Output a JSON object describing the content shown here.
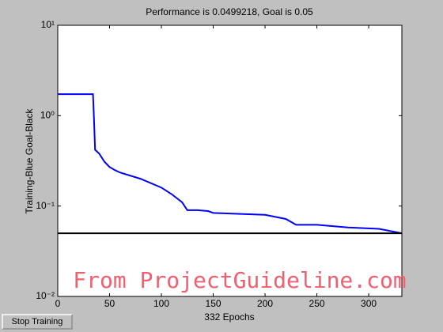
{
  "chart_data": {
    "type": "line",
    "title": "Performance is 0.0499218, Goal is 0.05",
    "x_label": "332 Epochs",
    "y_label": "Training-Blue  Goal-Black",
    "log_y": true,
    "x": [
      0,
      34,
      35,
      36,
      40,
      45,
      50,
      55,
      60,
      80,
      100,
      110,
      120,
      125,
      135,
      145,
      150,
      200,
      220,
      230,
      250,
      280,
      310,
      332
    ],
    "series": [
      {
        "color": "#0000ff",
        "values": [
          1.73,
          1.73,
          0.9,
          0.42,
          0.38,
          0.31,
          0.27,
          0.25,
          0.235,
          0.2,
          0.16,
          0.135,
          0.11,
          0.09,
          0.09,
          0.088,
          0.084,
          0.08,
          0.072,
          0.062,
          0.062,
          0.058,
          0.056,
          0.0499218
        ]
      }
    ],
    "goal": 0.05,
    "goal_color": "#000000",
    "xlim": [
      0,
      332
    ],
    "xticks": [
      0,
      50,
      100,
      150,
      200,
      250,
      300
    ],
    "ylim": [
      0.01,
      10
    ],
    "yticks": [
      {
        "value": 0.01,
        "label": "10⁻²"
      },
      {
        "value": 0.1,
        "label": "10⁻¹"
      },
      {
        "value": 1,
        "label": "10⁰"
      },
      {
        "value": 10,
        "label": "10¹"
      }
    ],
    "watermark": "From ProjectGuideline.com"
  },
  "controls": {
    "button": "Stop Training"
  }
}
